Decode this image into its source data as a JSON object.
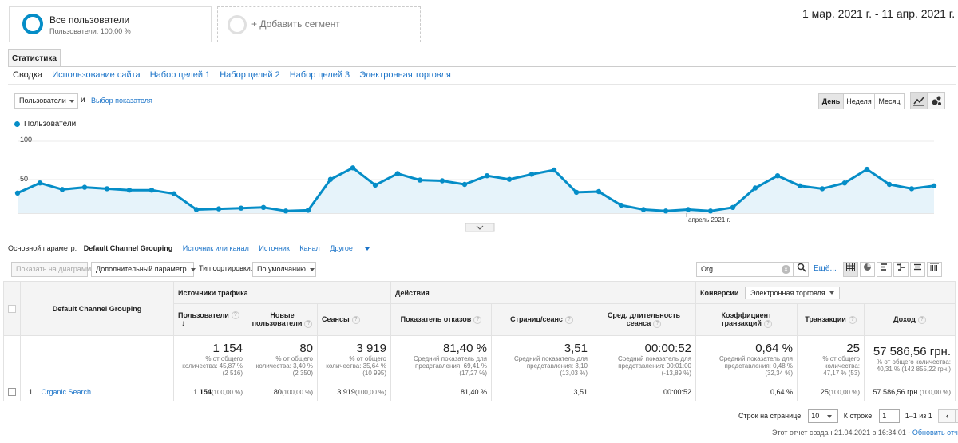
{
  "segments": {
    "active": {
      "title": "Все пользователи",
      "subtitle": "Пользователи: 100,00 %"
    },
    "add_label": "+ Добавить сегмент"
  },
  "date_range": "1 мар. 2021 г. - 11 апр. 2021 г.",
  "tabs": {
    "main": "Статистика",
    "sub": [
      "Сводка",
      "Использование сайта",
      "Набор целей 1",
      "Набор целей 2",
      "Набор целей 3",
      "Электронная торговля"
    ]
  },
  "chart_controls": {
    "metric": "Пользователи",
    "and": "и",
    "choose_metric": "Выбор показателя",
    "granularity": [
      "День",
      "Неделя",
      "Месяц"
    ],
    "granularity_selected": "День"
  },
  "chart_data": {
    "type": "line",
    "legend": "Пользователи",
    "y_ticks": [
      "100",
      "50"
    ],
    "ylim": [
      0,
      100
    ],
    "x_marker_label": "апрель 2021 г.",
    "series": [
      {
        "name": "Пользователи",
        "values": [
          28,
          42,
          33,
          36,
          34,
          32,
          32,
          27,
          5,
          6,
          7,
          8,
          3,
          4,
          47,
          63,
          39,
          55,
          46,
          45,
          40,
          52,
          47,
          54,
          60,
          29,
          30,
          11,
          5,
          3,
          5,
          3,
          8,
          35,
          52,
          38,
          34,
          42,
          61,
          40,
          34,
          38
        ]
      }
    ],
    "color": "#058dc7"
  },
  "dimensions": {
    "label": "Основной параметр:",
    "current": "Default Channel Grouping",
    "others": [
      "Источник или канал",
      "Источник",
      "Канал",
      "Другое"
    ]
  },
  "toolbar": {
    "plot_rows": "Показать на диаграмме",
    "secondary_dim": "Дополнительный параметр",
    "sort_label": "Тип сортировки:",
    "sort_value": "По умолчанию",
    "search_value": "Org",
    "advanced": "Ещё..."
  },
  "table": {
    "dim_header": "Default Channel Grouping",
    "groups": {
      "acq": "Источники трафика",
      "beh": "Действия",
      "conv": "Конверсии"
    },
    "conv_select": "Электронная торговля",
    "columns": [
      "Пользователи",
      "Новые пользователи",
      "Сеансы",
      "Показатель отказов",
      "Страниц/сеанс",
      "Сред. длительность сеанса",
      "Коэффициент транзакций",
      "Транзакции",
      "Доход"
    ],
    "totals": [
      {
        "value": "1 154",
        "sub1": "% от общего",
        "sub2": "количества: 45,87 %",
        "sub3": "(2 516)"
      },
      {
        "value": "80",
        "sub1": "% от общего",
        "sub2": "количества: 3,40 %",
        "sub3": "(2 350)"
      },
      {
        "value": "3 919",
        "sub1": "% от общего",
        "sub2": "количества: 35,64 %",
        "sub3": "(10 995)"
      },
      {
        "value": "81,40 %",
        "sub1": "Средний показатель для",
        "sub2": "представления: 69,41 %",
        "sub3": "(17,27 %)"
      },
      {
        "value": "3,51",
        "sub1": "Средний показатель для",
        "sub2": "представления: 3,10",
        "sub3": "(13,03 %)"
      },
      {
        "value": "00:00:52",
        "sub1": "Средний показатель для",
        "sub2": "представления: 00:01:00",
        "sub3": "(-13,89 %)"
      },
      {
        "value": "0,64 %",
        "sub1": "Средний показатель для",
        "sub2": "представления: 0,48 %",
        "sub3": "(32,34 %)"
      },
      {
        "value": "25",
        "sub1": "% от общего",
        "sub2": "количества:",
        "sub3": "47,17 % (53)"
      },
      {
        "value": "57 586,56 грн.",
        "sub1": "% от общего количества:",
        "sub2": "40,31 % (142 855,22 грн.)",
        "sub3": ""
      }
    ],
    "row": {
      "index": "1.",
      "name": "Organic Search",
      "cells": [
        {
          "v": "1 154",
          "p": "(100,00 %)"
        },
        {
          "v": "80",
          "p": "(100,00 %)"
        },
        {
          "v": "3 919",
          "p": "(100,00 %)"
        },
        {
          "v": "81,40 %",
          "p": ""
        },
        {
          "v": "3,51",
          "p": ""
        },
        {
          "v": "00:00:52",
          "p": ""
        },
        {
          "v": "0,64 %",
          "p": ""
        },
        {
          "v": "25",
          "p": "(100,00 %)"
        },
        {
          "v": "57 586,56 грн.",
          "p": "(100,00 %)"
        }
      ]
    }
  },
  "pager": {
    "rows_label": "Строк на странице:",
    "rows_value": "10",
    "goto_label": "К строке:",
    "goto_value": "1",
    "range": "1–1 из 1"
  },
  "footer": {
    "text": "Этот отчет создан 21.04.2021 в 16:34:01 -",
    "link": "Обновить отчет"
  }
}
